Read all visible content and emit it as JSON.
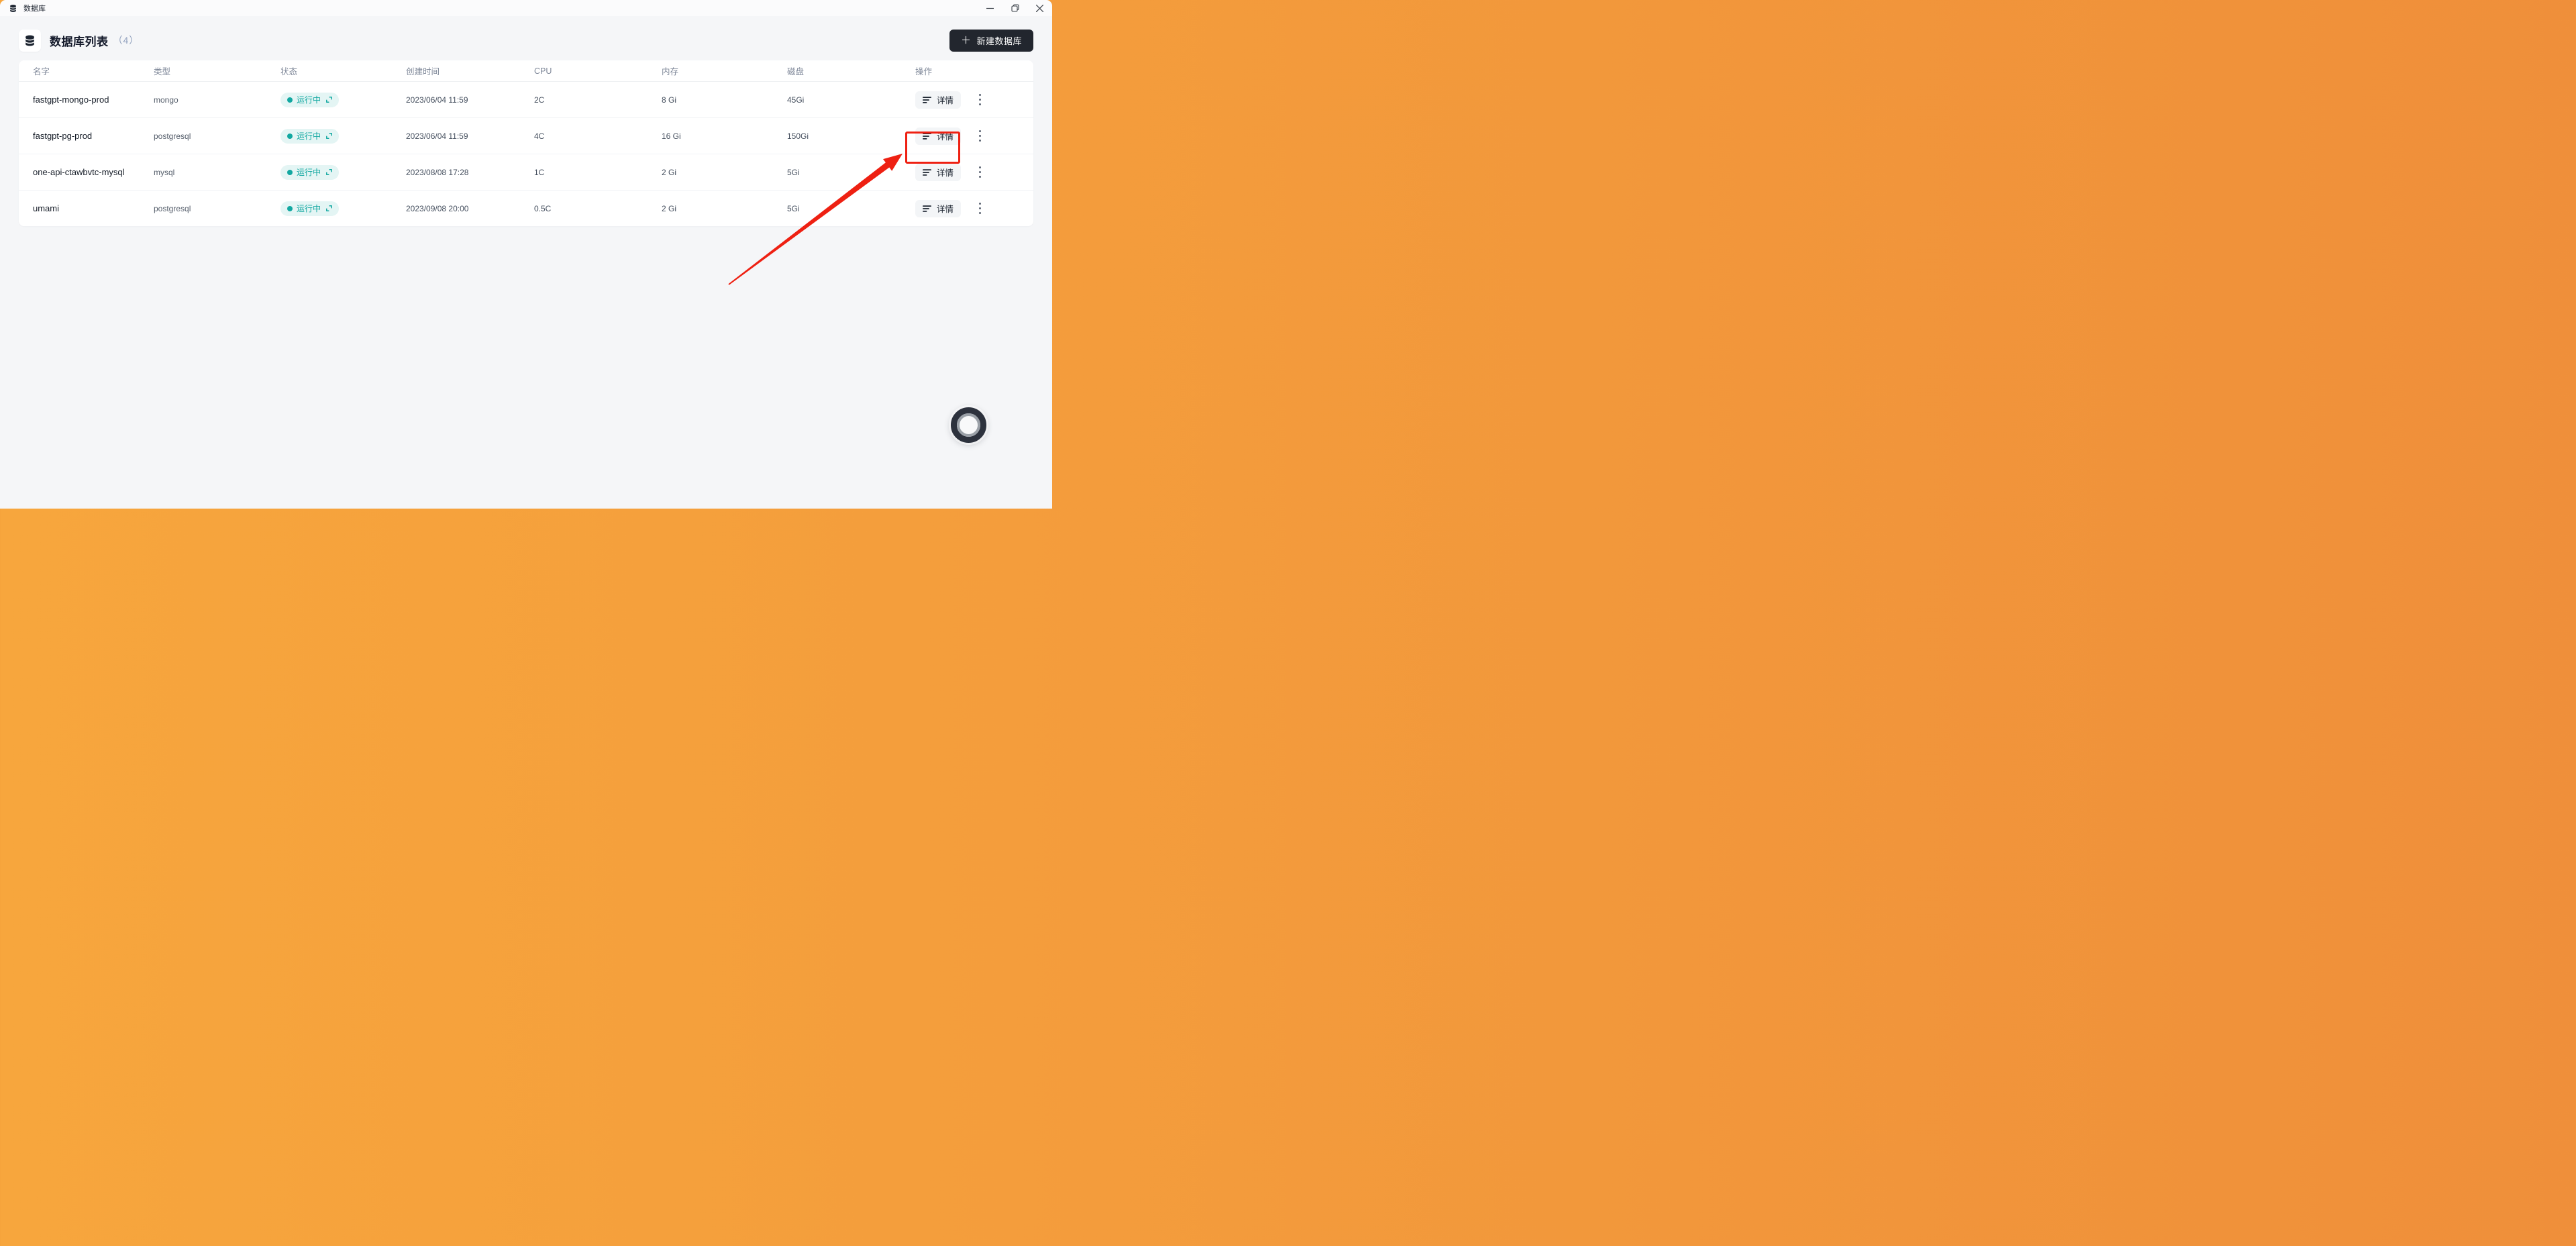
{
  "titlebar": {
    "app_title": "数据库"
  },
  "page_header": {
    "title": "数据库列表",
    "count": "（4）",
    "new_button_label": "新建数据库",
    "plus_glyph": "＋"
  },
  "table": {
    "columns": [
      "名字",
      "类型",
      "状态",
      "创建时间",
      "CPU",
      "内存",
      "磁盘",
      "操作"
    ],
    "detail_button_label": "详情",
    "rows": [
      {
        "name": "fastgpt-mongo-prod",
        "type": "mongo",
        "status": "运行中",
        "created": "2023/06/04 11:59",
        "cpu": "2C",
        "memory": "8 Gi",
        "disk": "45Gi"
      },
      {
        "name": "fastgpt-pg-prod",
        "type": "postgresql",
        "status": "运行中",
        "created": "2023/06/04 11:59",
        "cpu": "4C",
        "memory": "16 Gi",
        "disk": "150Gi"
      },
      {
        "name": "one-api-ctawbvtc-mysql",
        "type": "mysql",
        "status": "运行中",
        "created": "2023/08/08 17:28",
        "cpu": "1C",
        "memory": "2 Gi",
        "disk": "5Gi"
      },
      {
        "name": "umami",
        "type": "postgresql",
        "status": "运行中",
        "created": "2023/09/08 20:00",
        "cpu": "0.5C",
        "memory": "2 Gi",
        "disk": "5Gi"
      }
    ]
  },
  "colors": {
    "status_teal": "#12a8a1",
    "status_badge_bg": "#e4f5f4",
    "annotation_red": "#ee2012",
    "primary_button_bg": "#22262e"
  }
}
